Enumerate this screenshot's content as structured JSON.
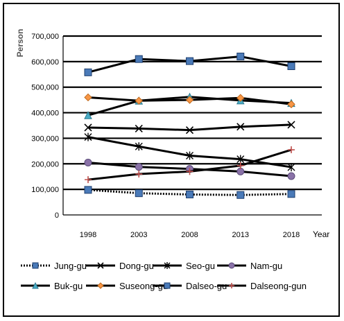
{
  "chart_data": {
    "type": "line",
    "title": "",
    "xlabel": "Year",
    "ylabel": "Person",
    "x": [
      "1998",
      "2003",
      "2008",
      "2013",
      "2018"
    ],
    "ylim": [
      0,
      700000
    ],
    "y_ticks": [
      "0",
      "100,000",
      "200,000",
      "300,000",
      "400,000",
      "500,000",
      "600,000",
      "700,000"
    ],
    "grid": "horizontal",
    "legend_position": "bottom",
    "series": [
      {
        "name": "Jung-gu",
        "values": [
          98000,
          85000,
          80000,
          78000,
          82000
        ],
        "color": "#4a7ab8",
        "marker": "square",
        "line": "dotted"
      },
      {
        "name": "Dong-gu",
        "values": [
          342000,
          338000,
          332000,
          345000,
          353000
        ],
        "color": "#000000",
        "marker": "x",
        "line": "solid"
      },
      {
        "name": "Seo-gu",
        "values": [
          305000,
          268000,
          232000,
          218000,
          187000
        ],
        "color": "#000000",
        "marker": "star",
        "line": "solid"
      },
      {
        "name": "Nam-gu",
        "values": [
          205000,
          188000,
          180000,
          170000,
          152000
        ],
        "color": "#8a72a8",
        "marker": "circle",
        "line": "solid"
      },
      {
        "name": "Buk-gu",
        "values": [
          390000,
          447000,
          462000,
          448000,
          438000
        ],
        "color": "#4bacc6",
        "marker": "triangle",
        "line": "solid"
      },
      {
        "name": "Suseong-gu",
        "values": [
          460000,
          447000,
          450000,
          458000,
          433000
        ],
        "color": "#f79646",
        "marker": "diamond",
        "line": "solid"
      },
      {
        "name": "Dalseo-gu",
        "values": [
          558000,
          610000,
          602000,
          620000,
          582000
        ],
        "color": "#4a7ab8",
        "marker": "square",
        "line": "solid"
      },
      {
        "name": "Dalseong-gun",
        "values": [
          138000,
          160000,
          170000,
          193000,
          255000
        ],
        "color": "#c0504d",
        "marker": "plus",
        "line": "solid"
      }
    ]
  }
}
